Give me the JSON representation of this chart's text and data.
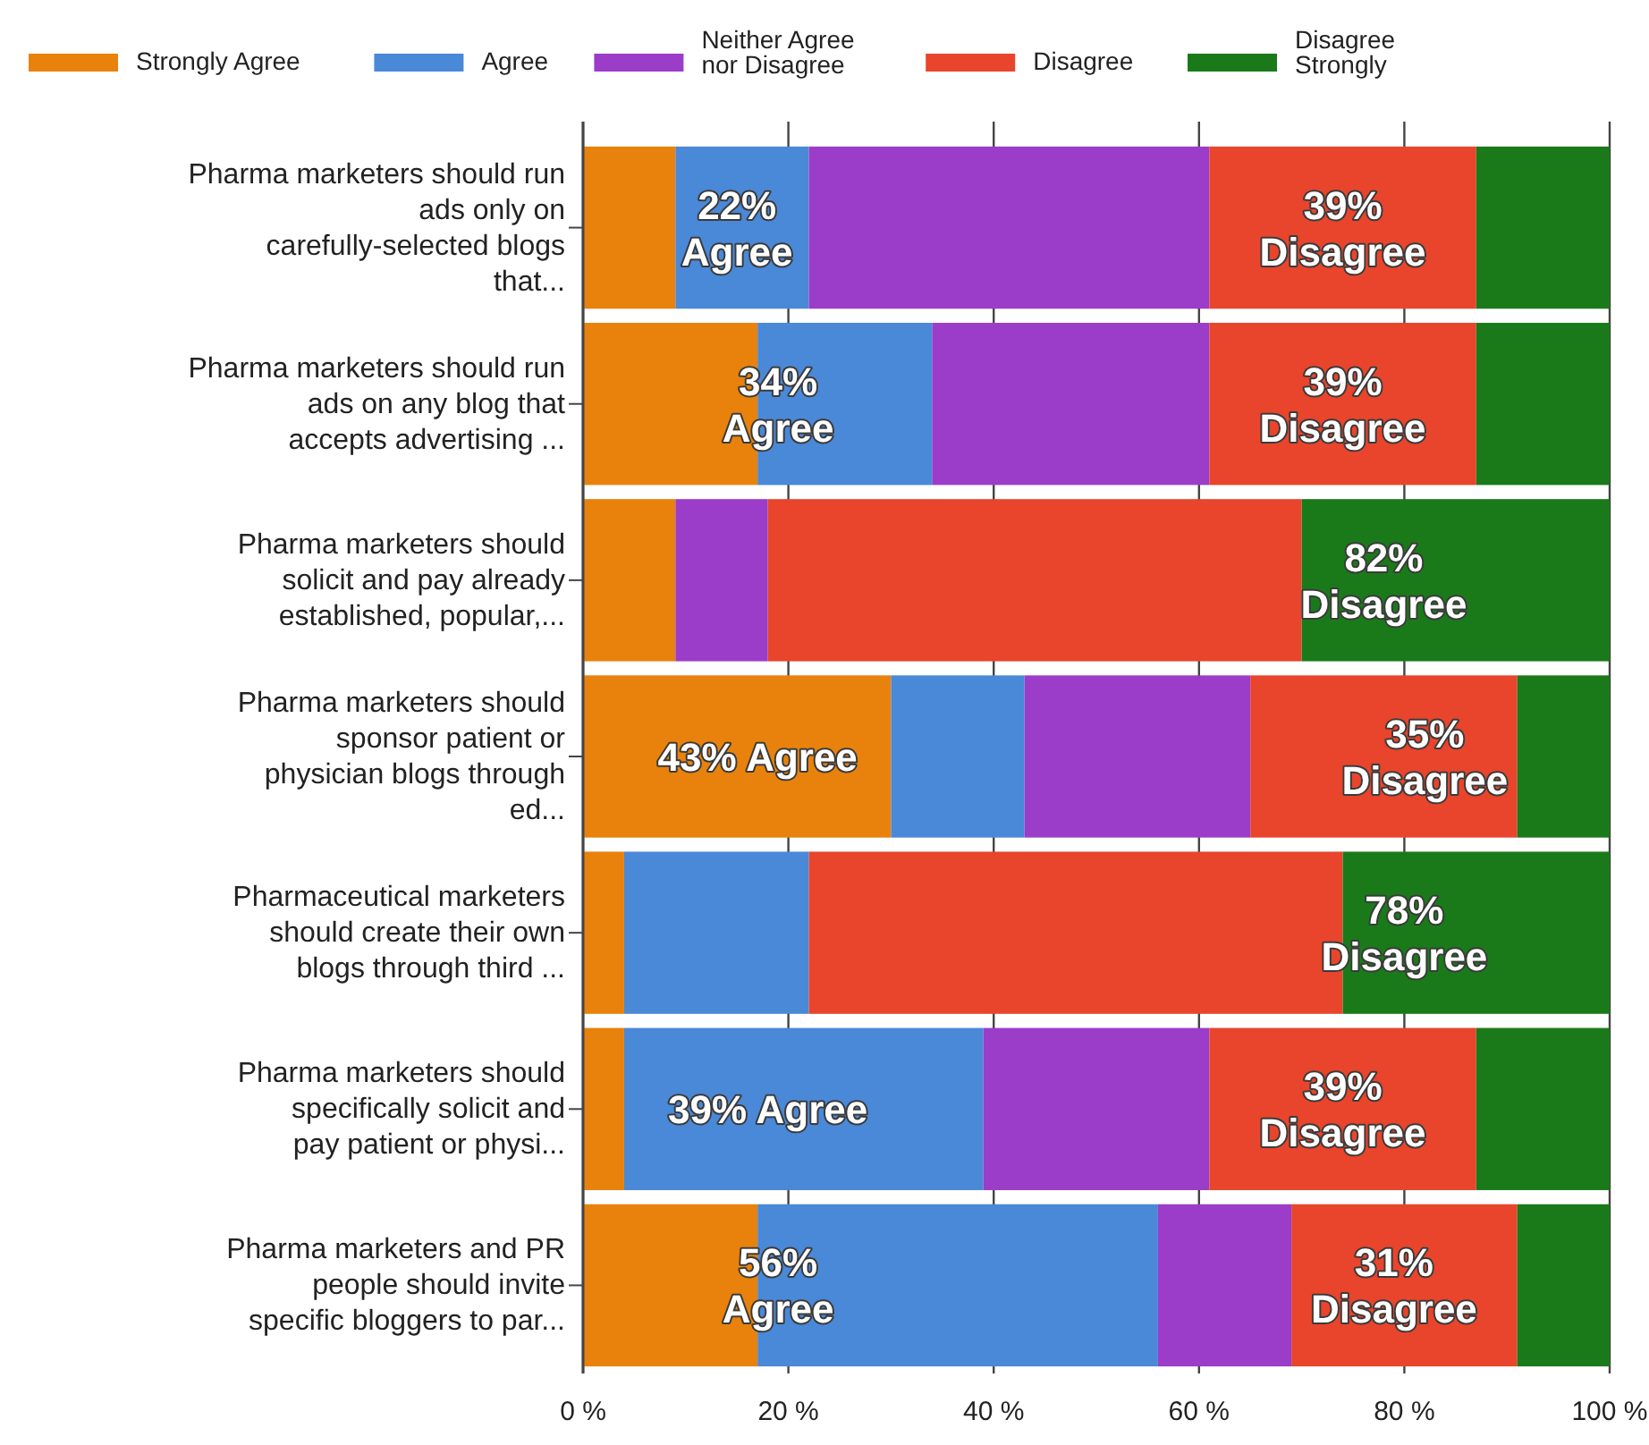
{
  "chart_data": {
    "type": "bar",
    "orientation": "horizontal",
    "stacked": true,
    "categories": [
      "Pharma marketers should run ads only on carefully-selected blogs that...",
      "Pharma marketers should run ads on any blog that accepts advertising ...",
      "Pharma marketers should solicit and pay already established, popular,...",
      "Pharma marketers should sponsor patient or physician blogs through ed...",
      "Pharmaceutical marketers should create their own blogs through third ...",
      "Pharma marketers should specifically solicit and pay patient or physi...",
      "Pharma marketers and PR people should invite specific bloggers to par..."
    ],
    "series": [
      {
        "name": "Strongly Agree",
        "color": "#e8820c",
        "values": [
          9,
          17,
          9,
          30,
          4,
          4,
          17
        ]
      },
      {
        "name": "Agree",
        "color": "#4a88d8",
        "values": [
          13,
          17,
          0,
          13,
          18,
          35,
          39
        ]
      },
      {
        "name": "Neither Agree nor Disagree",
        "color": "#9b3dc8",
        "values": [
          39,
          27,
          9,
          22,
          0,
          22,
          13
        ]
      },
      {
        "name": "Disagree",
        "color": "#e8452c",
        "values": [
          26,
          26,
          52,
          26,
          52,
          26,
          22
        ]
      },
      {
        "name": "Disagree Strongly",
        "color": "#1a7a1a",
        "values": [
          13,
          13,
          30,
          9,
          26,
          13,
          9
        ]
      }
    ],
    "xlim": [
      0,
      100
    ],
    "xticks": [
      {
        "value": 0,
        "label": "0 %"
      },
      {
        "value": 20,
        "label": "20 %"
      },
      {
        "value": 40,
        "label": "40 %"
      },
      {
        "value": 60,
        "label": "60 %"
      },
      {
        "value": 80,
        "label": "80 %"
      },
      {
        "value": 100,
        "label": "100 %"
      }
    ],
    "grid": "x",
    "legend": "top",
    "annotations": [
      {
        "text": "22% Agree",
        "x": 15,
        "y": "Pharma marketers should run ads only on carefully-selected blogs that..."
      },
      {
        "text": "39% Disagree",
        "x": 74,
        "y": "Pharma marketers should run ads only on carefully-selected blogs that..."
      },
      {
        "text": "34% Agree",
        "x": 19,
        "y": "Pharma marketers should run ads on any blog that accepts advertising ..."
      },
      {
        "text": "39% Disagree",
        "x": 74,
        "y": "Pharma marketers should run ads on any blog that accepts advertising ..."
      },
      {
        "text": "82% Disagree",
        "x": 78,
        "y": "Pharma marketers should solicit and pay already established, popular,..."
      },
      {
        "text": "43% Agree",
        "x": 17,
        "y": "Pharma marketers should sponsor patient or physician blogs through ed..."
      },
      {
        "text": "35% Disagree",
        "x": 82,
        "y": "Pharma marketers should sponsor patient or physician blogs through ed..."
      },
      {
        "text": "78% Disagree",
        "x": 80,
        "y": "Pharmaceutical marketers should create their own blogs through third ..."
      },
      {
        "text": "39% Agree",
        "x": 18,
        "y": "Pharma marketers should specifically solicit and pay patient or physi..."
      },
      {
        "text": "39% Disagree",
        "x": 74,
        "y": "Pharma marketers should specifically solicit and pay patient or physi..."
      },
      {
        "text": "56% Agree",
        "x": 19,
        "y": "Pharma marketers and PR people should invite specific bloggers to par..."
      },
      {
        "text": "31% Disagree",
        "x": 79,
        "y": "Pharma marketers and PR people should invite specific bloggers to par..."
      }
    ]
  }
}
